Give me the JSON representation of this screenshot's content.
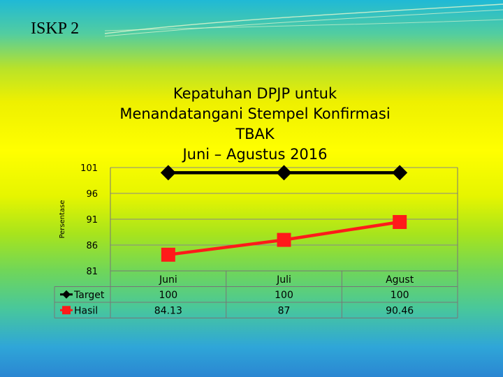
{
  "slide": {
    "title": "ISKP 2"
  },
  "chart_data": {
    "type": "line",
    "title_lines": [
      "Kepatuhan DPJP untuk",
      "Menandatangani Stempel  Konfirmasi",
      "TBAK",
      "Juni – Agustus 2016"
    ],
    "xlabel": "",
    "ylabel": "Persentase",
    "categories": [
      "Juni",
      "Juli",
      "Agust"
    ],
    "ylim": [
      81,
      101
    ],
    "yticks": [
      101,
      96,
      91,
      86,
      81
    ],
    "grid": true,
    "legend": "data-table-left",
    "series": [
      {
        "name": "Target",
        "values": [
          100,
          100,
          100
        ],
        "table_values": [
          "100",
          "100",
          "100"
        ],
        "color": "#000000",
        "marker": "diamond"
      },
      {
        "name": "Hasil",
        "values": [
          84.13,
          87,
          90.46
        ],
        "table_values": [
          "84.13",
          "87",
          "90.46"
        ],
        "color": "#ff1a1a",
        "marker": "square"
      }
    ]
  }
}
